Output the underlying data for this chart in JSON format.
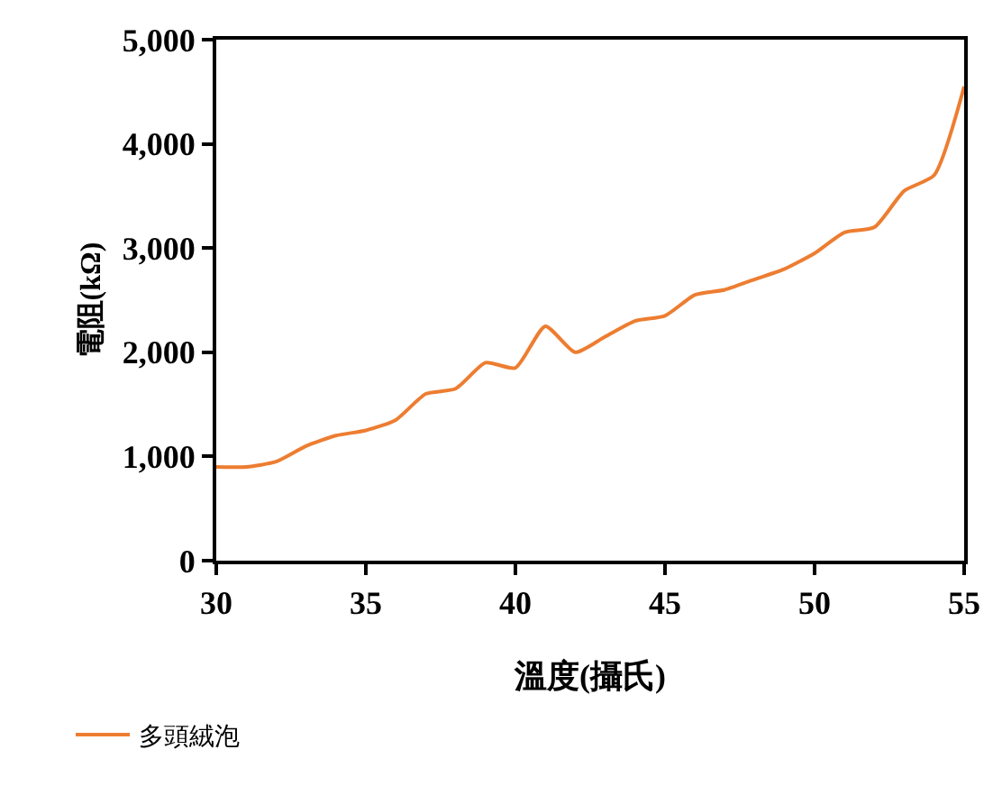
{
  "chart_data": {
    "type": "line",
    "xlabel": "溫度(攝氏)",
    "ylabel": "電阻(kΩ)",
    "x": [
      30,
      31,
      32,
      33,
      34,
      35,
      36,
      37,
      38,
      39,
      40,
      41,
      42,
      43,
      44,
      45,
      46,
      47,
      48,
      49,
      50,
      51,
      52,
      53,
      54,
      55
    ],
    "series": [
      {
        "name": "多頭絨泡",
        "color": "#ed7d31",
        "values": [
          900,
          900,
          950,
          1100,
          1200,
          1250,
          1350,
          1600,
          1650,
          1900,
          1850,
          2250,
          2000,
          2150,
          2300,
          2350,
          2550,
          2600,
          2700,
          2800,
          2950,
          3150,
          3200,
          3550,
          3700,
          4550
        ]
      }
    ],
    "xlim": [
      30,
      55
    ],
    "xticks": [
      30,
      35,
      40,
      45,
      50,
      55
    ],
    "ylim": [
      0,
      5000
    ],
    "yticks": [
      {
        "value": 0,
        "label": "0"
      },
      {
        "value": 1000,
        "label": "1,000"
      },
      {
        "value": 2000,
        "label": "2,000"
      },
      {
        "value": 3000,
        "label": "3,000"
      },
      {
        "value": 4000,
        "label": "4,000"
      },
      {
        "value": 5000,
        "label": "5,000"
      }
    ],
    "legend": "bottom left",
    "marker": "none",
    "line_style": "solid"
  }
}
